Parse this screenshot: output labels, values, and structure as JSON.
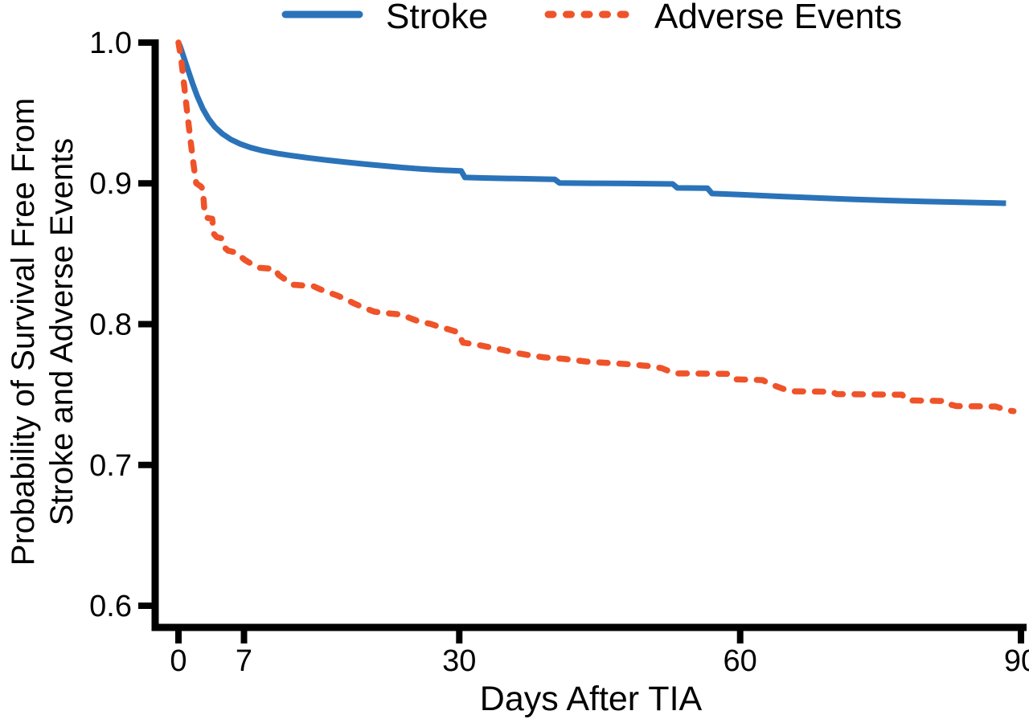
{
  "figure": {
    "background_color": "#ffffff",
    "axis_color": "#000000",
    "text_color": "#000000"
  },
  "chart_data": {
    "type": "line",
    "subtype": "kaplan-meier-survival",
    "title": "",
    "xlabel": "Days After TIA",
    "ylabel_line1": "Probability of Survival Free From",
    "ylabel_line2": "Stroke and Adverse Events",
    "xlim": [
      0,
      90
    ],
    "ylim": [
      0.6,
      1.0
    ],
    "x_ticks": [
      0,
      7,
      30,
      60,
      90
    ],
    "x_tick_labels": [
      "0",
      "7",
      "30",
      "60",
      "90"
    ],
    "y_ticks": [
      1.0,
      0.9,
      0.8,
      0.7,
      0.6
    ],
    "y_tick_labels": [
      "1.0",
      "0.9",
      "0.8",
      "0.7",
      "0.6"
    ],
    "grid": false,
    "legend_position": "top",
    "series": [
      {
        "name": "Stroke",
        "color": "#2b73b9",
        "line_style": "solid",
        "points": [
          [
            0,
            1.0
          ],
          [
            0.2,
            0.997
          ],
          [
            0.5,
            0.991
          ],
          [
            0.8,
            0.985
          ],
          [
            1.1,
            0.979
          ],
          [
            1.5,
            0.971
          ],
          [
            2.0,
            0.962
          ],
          [
            2.6,
            0.953
          ],
          [
            3.2,
            0.946
          ],
          [
            3.9,
            0.94
          ],
          [
            4.7,
            0.9352
          ],
          [
            5.6,
            0.9312
          ],
          [
            6.6,
            0.928
          ],
          [
            7.7,
            0.9254
          ],
          [
            9.0,
            0.9232
          ],
          [
            10.5,
            0.9213
          ],
          [
            12,
            0.9198
          ],
          [
            14,
            0.918
          ],
          [
            16,
            0.9164
          ],
          [
            18,
            0.915
          ],
          [
            20,
            0.9136
          ],
          [
            22,
            0.9124
          ],
          [
            24,
            0.9112
          ],
          [
            26,
            0.9102
          ],
          [
            28,
            0.9094
          ],
          [
            30.2,
            0.9088
          ],
          [
            30.6,
            0.9042
          ],
          [
            33,
            0.9038
          ],
          [
            36,
            0.9034
          ],
          [
            40.2,
            0.9028
          ],
          [
            40.7,
            0.9003
          ],
          [
            44,
            0.9001
          ],
          [
            48,
            0.8999
          ],
          [
            52.8,
            0.8996
          ],
          [
            53.3,
            0.8968
          ],
          [
            56.5,
            0.8966
          ],
          [
            57.0,
            0.8928
          ],
          [
            60,
            0.892
          ],
          [
            64,
            0.8908
          ],
          [
            68,
            0.8897
          ],
          [
            72,
            0.8887
          ],
          [
            76,
            0.8878
          ],
          [
            80,
            0.8871
          ],
          [
            84,
            0.8865
          ],
          [
            87,
            0.8861
          ],
          [
            88.4,
            0.8859
          ]
        ]
      },
      {
        "name": "Adverse Events",
        "color": "#ef5329",
        "line_style": "dashed",
        "points": [
          [
            0,
            1.0
          ],
          [
            0.3,
            0.988
          ],
          [
            0.5,
            0.976
          ],
          [
            0.7,
            0.964
          ],
          [
            0.9,
            0.952
          ],
          [
            1.1,
            0.941
          ],
          [
            1.3,
            0.93
          ],
          [
            1.5,
            0.919
          ],
          [
            1.7,
            0.909
          ],
          [
            1.9,
            0.9
          ],
          [
            2.4,
            0.8978
          ],
          [
            2.6,
            0.896
          ],
          [
            2.8,
            0.878
          ],
          [
            3.1,
            0.8755
          ],
          [
            3.6,
            0.8748
          ],
          [
            3.8,
            0.864
          ],
          [
            4.1,
            0.8618
          ],
          [
            4.6,
            0.861
          ],
          [
            4.9,
            0.8545
          ],
          [
            5.3,
            0.8522
          ],
          [
            6.2,
            0.8508
          ],
          [
            6.6,
            0.8482
          ],
          [
            7.1,
            0.8456
          ],
          [
            7.7,
            0.8432
          ],
          [
            8.2,
            0.8416
          ],
          [
            8.7,
            0.84
          ],
          [
            10.3,
            0.8392
          ],
          [
            10.7,
            0.835
          ],
          [
            11.4,
            0.8318
          ],
          [
            11.7,
            0.8302
          ],
          [
            12.2,
            0.828
          ],
          [
            14.4,
            0.827
          ],
          [
            15.1,
            0.8249
          ],
          [
            15.9,
            0.8229
          ],
          [
            16.9,
            0.8205
          ],
          [
            17.8,
            0.8179
          ],
          [
            18.7,
            0.8149
          ],
          [
            19.7,
            0.812
          ],
          [
            20.9,
            0.8089
          ],
          [
            22.1,
            0.8079
          ],
          [
            23.8,
            0.8068
          ],
          [
            24.9,
            0.8039
          ],
          [
            25.7,
            0.8019
          ],
          [
            26.9,
            0.8002
          ],
          [
            27.7,
            0.7985
          ],
          [
            28.8,
            0.7964
          ],
          [
            29.8,
            0.7944
          ],
          [
            30.4,
            0.7869
          ],
          [
            31.6,
            0.7858
          ],
          [
            33.1,
            0.7838
          ],
          [
            34.6,
            0.7818
          ],
          [
            36.1,
            0.7795
          ],
          [
            37.6,
            0.7778
          ],
          [
            39.1,
            0.7764
          ],
          [
            41.1,
            0.7754
          ],
          [
            43.6,
            0.7734
          ],
          [
            46.1,
            0.7724
          ],
          [
            48.1,
            0.7715
          ],
          [
            50.1,
            0.7703
          ],
          [
            51.6,
            0.7688
          ],
          [
            52.7,
            0.7658
          ],
          [
            53.2,
            0.765
          ],
          [
            58.7,
            0.7647
          ],
          [
            59.4,
            0.7608
          ],
          [
            62.4,
            0.7603
          ],
          [
            63.1,
            0.7578
          ],
          [
            63.9,
            0.7558
          ],
          [
            64.9,
            0.7533
          ],
          [
            65.4,
            0.7523
          ],
          [
            69.8,
            0.752
          ],
          [
            70.3,
            0.7503
          ],
          [
            77.3,
            0.7499
          ],
          [
            77.7,
            0.7468
          ],
          [
            78.3,
            0.7458
          ],
          [
            82.0,
            0.7454
          ],
          [
            82.5,
            0.7428
          ],
          [
            83.1,
            0.7418
          ],
          [
            87.3,
            0.7415
          ],
          [
            87.9,
            0.7402
          ],
          [
            88.6,
            0.7388
          ],
          [
            89.2,
            0.7382
          ]
        ]
      }
    ]
  }
}
